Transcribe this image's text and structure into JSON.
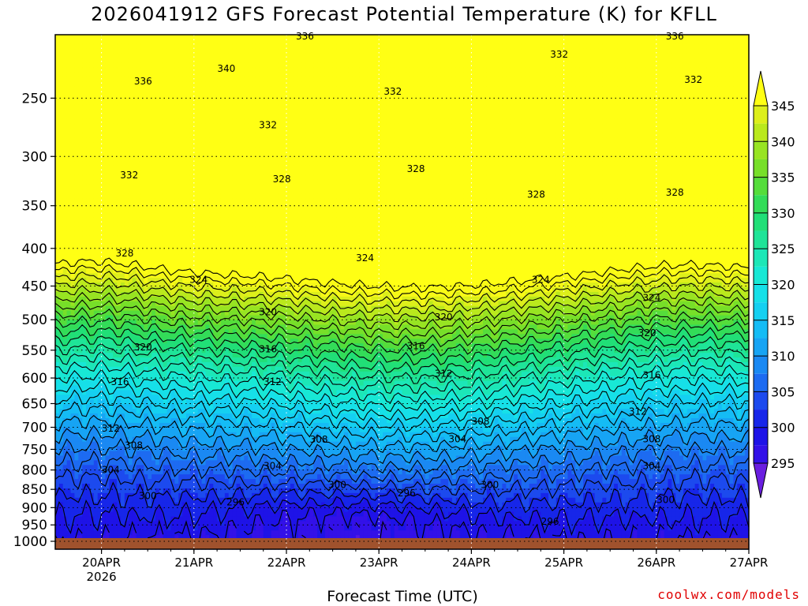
{
  "title": "2026041912 GFS Forecast Potential Temperature (K) for KFLL",
  "xlabel": "Forecast Time (UTC)",
  "credit": "coolwx.com/models",
  "chart_data": {
    "type": "heatmap",
    "title": "2026041912 GFS Forecast Potential Temperature (K) for KFLL",
    "xlabel": "Forecast Time (UTC)",
    "ylabel": "",
    "x_ticks": [
      "20APR",
      "21APR",
      "22APR",
      "23APR",
      "24APR",
      "25APR",
      "26APR",
      "27APR"
    ],
    "x_year_label": "2026",
    "x_range_days": [
      19.5,
      27.0
    ],
    "y_ticks": [
      250,
      300,
      350,
      400,
      450,
      500,
      550,
      600,
      650,
      700,
      750,
      800,
      850,
      900,
      950,
      1000
    ],
    "y_scale": "log-pressure, inverted",
    "grid": "dotted",
    "colorbar": {
      "ticks": [
        295,
        300,
        305,
        310,
        315,
        320,
        325,
        330,
        335,
        340,
        345
      ],
      "range": [
        292.5,
        347.5
      ],
      "extend": "both",
      "colors": {
        "292.5": "#6a1ee0",
        "295": "#3d10e8",
        "300": "#1414e6",
        "305": "#1e5cf0",
        "310": "#1898f4",
        "315": "#14c8f5",
        "320": "#16e8e4",
        "325": "#1ee6a8",
        "330": "#22dc66",
        "335": "#66dd2c",
        "340": "#a8e61e",
        "345": "#eef21a",
        "347.5": "#ffff14"
      }
    },
    "contour_interval_K": 2,
    "contour_labels": [
      {
        "day": 20.45,
        "p": 237,
        "v": 336
      },
      {
        "day": 21.35,
        "p": 228,
        "v": 340
      },
      {
        "day": 22.2,
        "p": 206,
        "v": 336
      },
      {
        "day": 23.15,
        "p": 245,
        "v": 332
      },
      {
        "day": 21.8,
        "p": 272,
        "v": 332
      },
      {
        "day": 24.95,
        "p": 218,
        "v": 332
      },
      {
        "day": 26.2,
        "p": 206,
        "v": 336
      },
      {
        "day": 26.4,
        "p": 236,
        "v": 332
      },
      {
        "day": 20.3,
        "p": 318,
        "v": 332
      },
      {
        "day": 21.95,
        "p": 322,
        "v": 328
      },
      {
        "day": 23.4,
        "p": 312,
        "v": 328
      },
      {
        "day": 24.7,
        "p": 338,
        "v": 328
      },
      {
        "day": 26.2,
        "p": 336,
        "v": 328
      },
      {
        "day": 20.25,
        "p": 406,
        "v": 328
      },
      {
        "day": 21.05,
        "p": 441,
        "v": 324
      },
      {
        "day": 22.85,
        "p": 412,
        "v": 324
      },
      {
        "day": 24.75,
        "p": 441,
        "v": 324
      },
      {
        "day": 25.95,
        "p": 467,
        "v": 324
      },
      {
        "day": 20.45,
        "p": 545,
        "v": 320
      },
      {
        "day": 21.8,
        "p": 488,
        "v": 320
      },
      {
        "day": 23.7,
        "p": 496,
        "v": 320
      },
      {
        "day": 25.9,
        "p": 521,
        "v": 320
      },
      {
        "day": 20.2,
        "p": 607,
        "v": 316
      },
      {
        "day": 21.8,
        "p": 548,
        "v": 316
      },
      {
        "day": 23.4,
        "p": 543,
        "v": 316
      },
      {
        "day": 25.95,
        "p": 595,
        "v": 316
      },
      {
        "day": 21.85,
        "p": 607,
        "v": 312
      },
      {
        "day": 23.7,
        "p": 592,
        "v": 312
      },
      {
        "day": 25.8,
        "p": 666,
        "v": 312
      },
      {
        "day": 20.1,
        "p": 703,
        "v": 312
      },
      {
        "day": 20.35,
        "p": 741,
        "v": 308
      },
      {
        "day": 22.35,
        "p": 727,
        "v": 308
      },
      {
        "day": 24.1,
        "p": 687,
        "v": 308
      },
      {
        "day": 25.95,
        "p": 726,
        "v": 308
      },
      {
        "day": 20.1,
        "p": 800,
        "v": 304
      },
      {
        "day": 21.85,
        "p": 790,
        "v": 304
      },
      {
        "day": 23.85,
        "p": 726,
        "v": 304
      },
      {
        "day": 25.95,
        "p": 790,
        "v": 304
      },
      {
        "day": 20.5,
        "p": 868,
        "v": 300
      },
      {
        "day": 22.55,
        "p": 838,
        "v": 300
      },
      {
        "day": 24.2,
        "p": 838,
        "v": 300
      },
      {
        "day": 26.1,
        "p": 878,
        "v": 300
      },
      {
        "day": 21.45,
        "p": 885,
        "v": 296
      },
      {
        "day": 23.3,
        "p": 860,
        "v": 296
      },
      {
        "day": 24.85,
        "p": 940,
        "v": 296
      }
    ]
  }
}
